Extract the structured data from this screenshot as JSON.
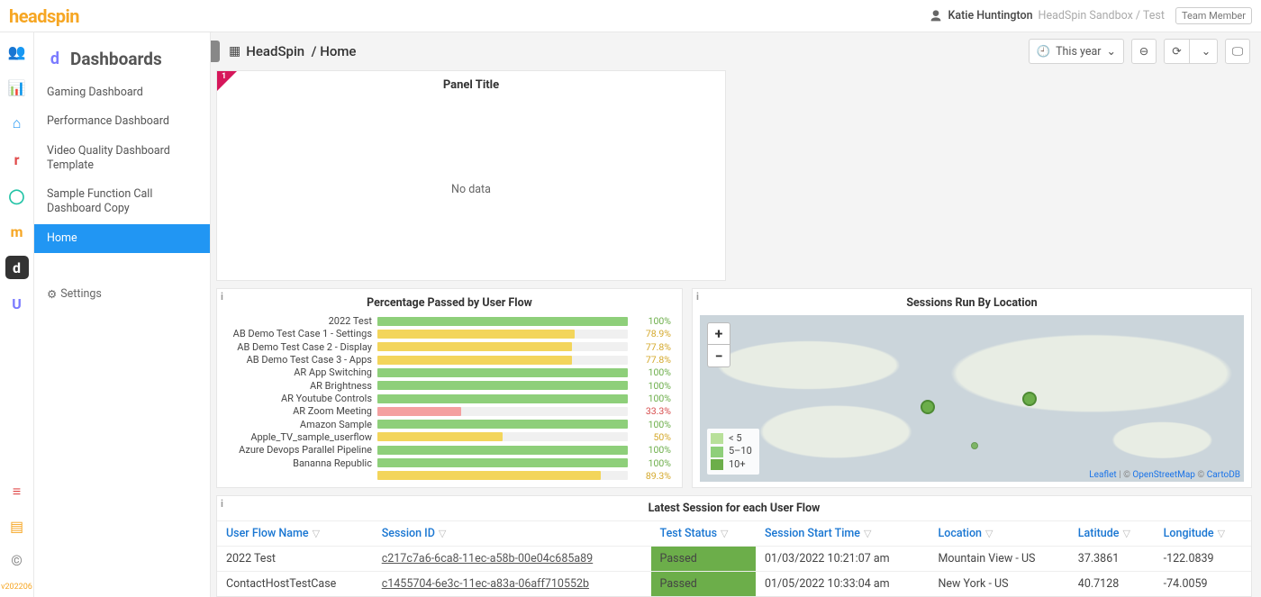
{
  "brand": "headspin",
  "user": {
    "name": "Katie Huntington",
    "org_path": "HeadSpin Sandbox / Test",
    "role_badge": "Team Member"
  },
  "version": "v202206",
  "icon_rail": [
    {
      "name": "people",
      "color": "#f6a623",
      "glyph": "👥"
    },
    {
      "name": "chart-bar",
      "color": "#f6a623",
      "glyph": "📊"
    },
    {
      "name": "home",
      "color": "#2196f3",
      "glyph": "⌂"
    },
    {
      "name": "r",
      "color": "#e04a4a",
      "glyph": "r"
    },
    {
      "name": "ring",
      "color": "#22c3a6",
      "glyph": "◯"
    },
    {
      "name": "m",
      "color": "#f6a623",
      "glyph": "m"
    },
    {
      "name": "d-icon",
      "color": "#ffffff",
      "glyph": "d",
      "active": true
    },
    {
      "name": "u",
      "color": "#7b7bff",
      "glyph": "U"
    }
  ],
  "icon_rail_bottom": [
    {
      "name": "list-red",
      "color": "#e04a4a",
      "glyph": "≡"
    },
    {
      "name": "doc-orange",
      "color": "#f6a623",
      "glyph": "▤"
    },
    {
      "name": "copyright",
      "color": "#888",
      "glyph": "©"
    }
  ],
  "sidebar": {
    "title": "Dashboards",
    "items": [
      {
        "label": "Gaming Dashboard"
      },
      {
        "label": "Performance Dashboard"
      },
      {
        "label": "Video Quality Dashboard Template"
      },
      {
        "label": "Sample Function Call Dashboard Copy"
      },
      {
        "label": "Home",
        "active": true
      }
    ],
    "settings_label": "Settings"
  },
  "breadcrumb": {
    "folder": "HeadSpin",
    "page": "Home"
  },
  "time_range_label": "This year",
  "panels": {
    "panel1": {
      "title": "Panel Title",
      "no_data": "No data",
      "badge_count": "1"
    },
    "percentage": {
      "title": "Percentage Passed by User Flow",
      "rows": [
        {
          "label": "2022 Test",
          "pct": 100
        },
        {
          "label": "AB Demo Test Case 1 - Settings",
          "pct": 78.9
        },
        {
          "label": "AB Demo Test Case 2 - Display",
          "pct": 77.8
        },
        {
          "label": "AB Demo Test Case 3 - Apps",
          "pct": 77.8
        },
        {
          "label": "AR App Switching",
          "pct": 100
        },
        {
          "label": "AR Brightness",
          "pct": 100
        },
        {
          "label": "AR Youtube Controls",
          "pct": 100
        },
        {
          "label": "AR Zoom Meeting",
          "pct": 33.3
        },
        {
          "label": "Amazon Sample",
          "pct": 100
        },
        {
          "label": "Apple_TV_sample_userflow",
          "pct": 50
        },
        {
          "label": "Azure Devops Parallel Pipeline",
          "pct": 100
        },
        {
          "label": "Bananna Republic",
          "pct": 100
        },
        {
          "label": "",
          "pct": 89.3
        }
      ],
      "colors": {
        "green": "#8ecf7a",
        "yellow": "#f3d55b",
        "red": "#f4a0a0",
        "track": "#f0f0f0",
        "val_green": "#6cae4a",
        "val_yellow": "#d4a82a",
        "val_red": "#d64a4a"
      }
    },
    "map": {
      "title": "Sessions Run By Location",
      "legend": [
        {
          "label": "< 5",
          "color": "#b8e09a"
        },
        {
          "label": "5–10",
          "color": "#8ecf7a"
        },
        {
          "label": "10+",
          "color": "#6cae4a"
        }
      ],
      "markers": [
        {
          "left_pct": 40.5,
          "top_pct": 51,
          "size": "big"
        },
        {
          "left_pct": 59.2,
          "top_pct": 46,
          "size": "big"
        },
        {
          "left_pct": 49.8,
          "top_pct": 76,
          "size": "small"
        }
      ],
      "attrib": {
        "leaflet": "Leaflet",
        "osm": "OpenStreetMap",
        "carto": "CartoDB"
      }
    },
    "sessions": {
      "title": "Latest Session for each User Flow",
      "columns": [
        "User Flow Name",
        "Session ID",
        "Test Status",
        "Session Start Time",
        "Location",
        "Latitude",
        "Longitude"
      ],
      "rows": [
        {
          "flow": "2022 Test",
          "sid": "c217c7a6-6ca8-11ec-a58b-00e04c685a89",
          "status": "Passed",
          "start": "01/03/2022 10:21:07 am",
          "loc": "Mountain View - US",
          "lat": "37.3861",
          "lon": "-122.0839"
        },
        {
          "flow": "ContactHostTestCase",
          "sid": "c1455704-6e3c-11ec-a83a-06aff710552b",
          "status": "Passed",
          "start": "01/05/2022 10:33:04 am",
          "loc": "New York - US",
          "lat": "40.7128",
          "lon": "-74.0059"
        }
      ],
      "status_color": "#6cae4a"
    }
  }
}
